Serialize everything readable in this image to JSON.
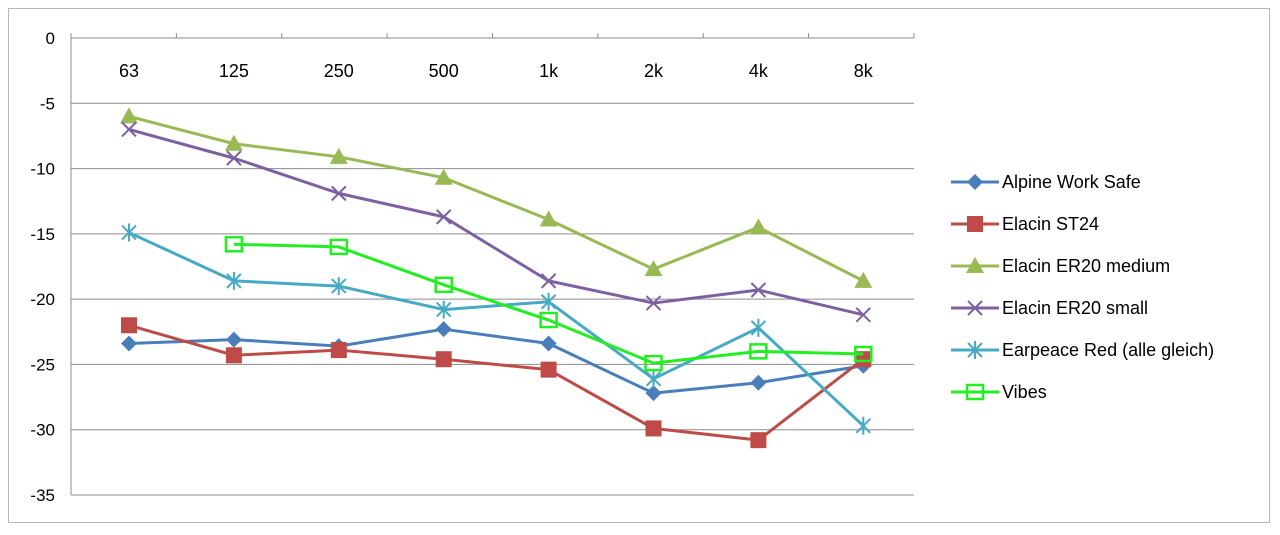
{
  "chart_data": {
    "type": "line",
    "categories": [
      "63",
      "125",
      "250",
      "500",
      "1k",
      "2k",
      "4k",
      "8k"
    ],
    "y_ticks": [
      "0",
      "-5",
      "-10",
      "-15",
      "-20",
      "-25",
      "-30",
      "-35"
    ],
    "ylim": [
      -35,
      0
    ],
    "grid": true,
    "x_axis_position": "top",
    "legend_position": "right",
    "series": [
      {
        "name": "Alpine Work Safe",
        "color": "#4a7ebb",
        "marker": "diamond",
        "values": [
          -23.4,
          -23.1,
          -23.6,
          -22.3,
          -23.4,
          -27.2,
          -26.4,
          -25.1
        ]
      },
      {
        "name": "Elacin ST24",
        "color": "#be4b48",
        "marker": "square",
        "values": [
          -22.0,
          -24.3,
          -23.9,
          -24.6,
          -25.4,
          -29.9,
          -30.8,
          -24.6
        ]
      },
      {
        "name": "Elacin ER20 medium",
        "color": "#98b954",
        "marker": "triangle",
        "values": [
          -6.0,
          -8.1,
          -9.1,
          -10.7,
          -13.9,
          -17.7,
          -14.5,
          -18.6
        ]
      },
      {
        "name": "Elacin ER20 small",
        "color": "#7d60a0",
        "marker": "x",
        "values": [
          -7.0,
          -9.2,
          -11.9,
          -13.7,
          -18.6,
          -20.3,
          -19.3,
          -21.2
        ]
      },
      {
        "name": "Earpeace Red (alle gleich)",
        "color": "#46aac5",
        "marker": "star",
        "values": [
          -14.9,
          -18.6,
          -19.0,
          -20.8,
          -20.2,
          -26.1,
          -22.2,
          -29.7
        ]
      },
      {
        "name": "Vibes",
        "color": "#22ee22",
        "marker": "open-square",
        "values": [
          null,
          -15.8,
          -16.0,
          -18.9,
          -21.6,
          -24.9,
          -24.0,
          -24.2
        ]
      }
    ]
  }
}
